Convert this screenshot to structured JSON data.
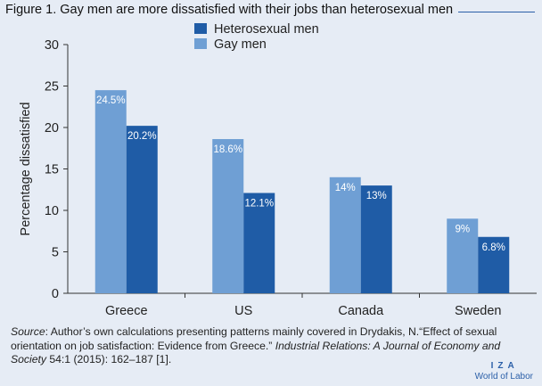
{
  "title": "Figure 1. Gay men are more dissatisfied with their jobs than heterosexual men",
  "source": {
    "label": "Source",
    "text_1": ": Author’s own calculations presenting patterns mainly covered in Drydakis, N.“Effect of sexual orientation on job satisfaction: Evidence from Greece.” ",
    "journal": "Industrial Relations: A Journal of Economy and Society",
    "text_2": " 54:1 (2015): 162–187 [1]."
  },
  "logo": {
    "line1": "IZA",
    "line2": "World of Labor"
  },
  "colors": {
    "heterosexual": "#1f5ca6",
    "gay": "#6f9fd4",
    "background": "#e6ecf5"
  },
  "chart_data": {
    "type": "bar",
    "title": "Gay men are more dissatisfied with their jobs than heterosexual men",
    "xlabel": "",
    "ylabel": "Percentage dissatisfied",
    "ylim": [
      0,
      30
    ],
    "yticks": [
      0,
      5,
      10,
      15,
      20,
      25,
      30
    ],
    "categories": [
      "Greece",
      "US",
      "Canada",
      "Sweden"
    ],
    "legend_position": "top-center",
    "series": [
      {
        "name": "Gay men",
        "values": [
          24.5,
          18.6,
          14,
          9
        ],
        "labels": [
          "24.5%",
          "18.6%",
          "14%",
          "9%"
        ],
        "color": "#6f9fd4"
      },
      {
        "name": "Heterosexual men",
        "values": [
          20.2,
          12.1,
          13,
          6.8
        ],
        "labels": [
          "20.2%",
          "12.1%",
          "13%",
          "6.8%"
        ],
        "color": "#1f5ca6"
      }
    ],
    "legend_order": [
      "Heterosexual men",
      "Gay men"
    ]
  }
}
